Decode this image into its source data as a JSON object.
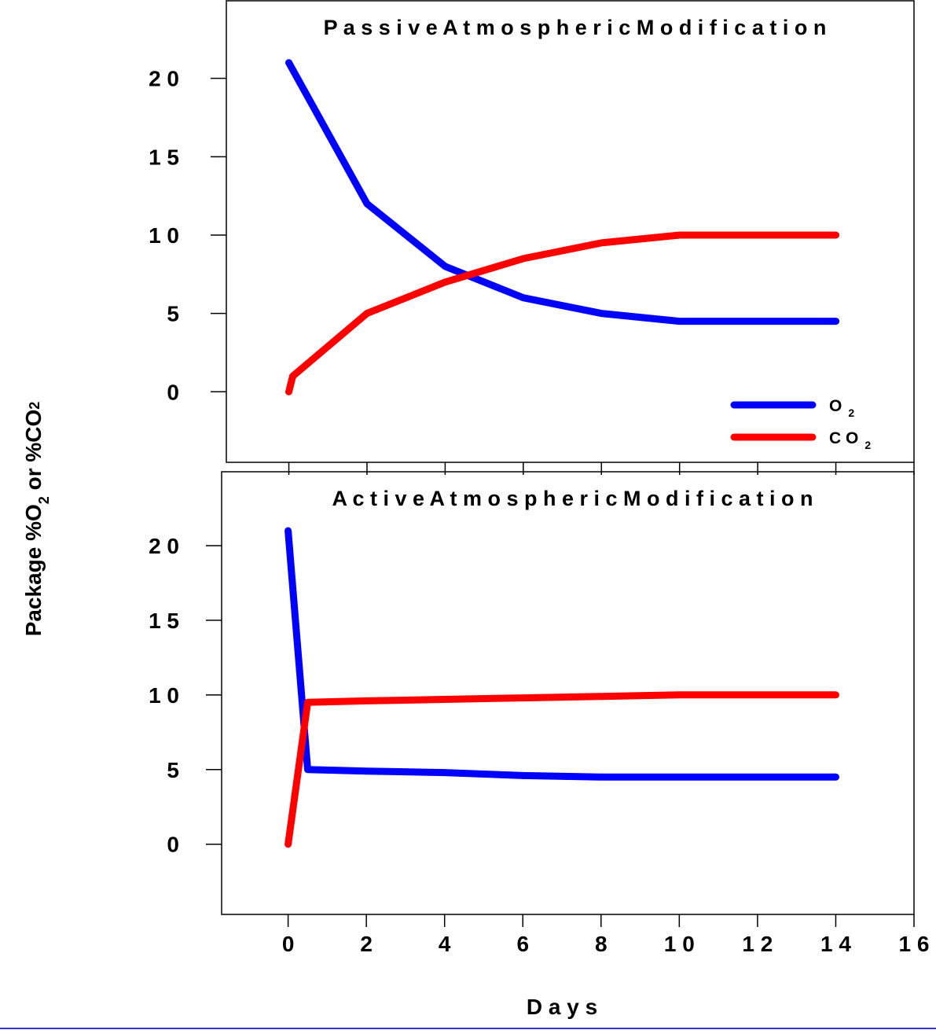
{
  "figure": {
    "ylabel_main": "Package %O",
    "ylabel_sub1": "2",
    "ylabel_mid": " or %CO",
    "ylabel_sub2": "2",
    "xlabel": "D a y s"
  },
  "colors": {
    "o2": "#0000ff",
    "co2": "#ff0000",
    "axis": "#000000",
    "bottom_rule": "#3333cc"
  },
  "chart_data": [
    {
      "type": "line",
      "title": "P a s s i v e   A t m o s p h e r i c   M o d i f i c a t i o n",
      "xlim": [
        -1.6,
        16
      ],
      "ylim": [
        -4.5,
        25
      ],
      "yticks": [
        0,
        5,
        10,
        15,
        20
      ],
      "ytick_labels": [
        "0",
        "5",
        "1 0",
        "1 5",
        "2 0"
      ],
      "xticks": [
        0,
        2,
        4,
        6,
        8,
        10,
        12,
        14,
        16
      ],
      "series": [
        {
          "name": "O 2",
          "color": "#0000ff",
          "x": [
            0,
            2,
            4,
            6,
            8,
            10,
            12,
            14
          ],
          "y": [
            21,
            12,
            8,
            6,
            5,
            4.5,
            4.5,
            4.5
          ]
        },
        {
          "name": "C O 2",
          "color": "#ff0000",
          "x": [
            0,
            0.1,
            2,
            4,
            6,
            8,
            10,
            12,
            14
          ],
          "y": [
            0,
            1,
            5,
            7,
            8.5,
            9.5,
            10,
            10,
            10
          ]
        }
      ],
      "legend": {
        "placement": "bottom-right",
        "entries": [
          {
            "base": "O",
            "sub": "2",
            "color": "#0000ff"
          },
          {
            "base": "C O",
            "sub": "2",
            "color": "#ff0000"
          }
        ]
      }
    },
    {
      "type": "line",
      "title": "A c t i v e   A t m o s p h e r i c   M o d i f i c a t i o n",
      "xlim": [
        -1.7,
        16
      ],
      "ylim": [
        -4.7,
        25
      ],
      "yticks": [
        0,
        5,
        10,
        15,
        20
      ],
      "ytick_labels": [
        "0",
        "5",
        "1 0",
        "1 5",
        "2 0"
      ],
      "xticks": [
        0,
        2,
        4,
        6,
        8,
        10,
        12,
        14,
        16
      ],
      "xtick_labels": [
        "0",
        "2",
        "4",
        "6",
        "8",
        "1 0",
        "1 2",
        "1 4",
        "1 6"
      ],
      "series": [
        {
          "name": "O 2",
          "color": "#0000ff",
          "x": [
            0,
            0.5,
            2,
            4,
            6,
            8,
            10,
            12,
            14
          ],
          "y": [
            21,
            5,
            4.9,
            4.8,
            4.6,
            4.5,
            4.5,
            4.5,
            4.5
          ]
        },
        {
          "name": "C O 2",
          "color": "#ff0000",
          "x": [
            0,
            0.5,
            2,
            4,
            6,
            8,
            10,
            12,
            14
          ],
          "y": [
            0,
            9.5,
            9.6,
            9.7,
            9.8,
            9.9,
            10,
            10,
            10
          ]
        }
      ]
    }
  ]
}
